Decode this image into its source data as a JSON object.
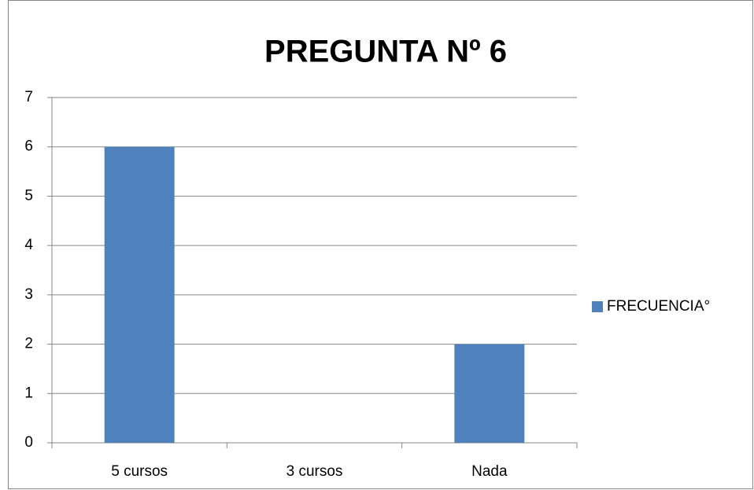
{
  "chart_data": {
    "type": "bar",
    "title": "PREGUNTA Nº 6",
    "categories": [
      "5 cursos",
      "3 cursos",
      "Nada"
    ],
    "series": [
      {
        "name": "FRECUENCIA°",
        "color": "#4f81bd",
        "values": [
          6,
          0,
          2
        ]
      }
    ],
    "ylim": [
      0,
      7
    ],
    "yticks": [
      0,
      1,
      2,
      3,
      4,
      5,
      6,
      7
    ],
    "grid": true,
    "legend": "right"
  }
}
